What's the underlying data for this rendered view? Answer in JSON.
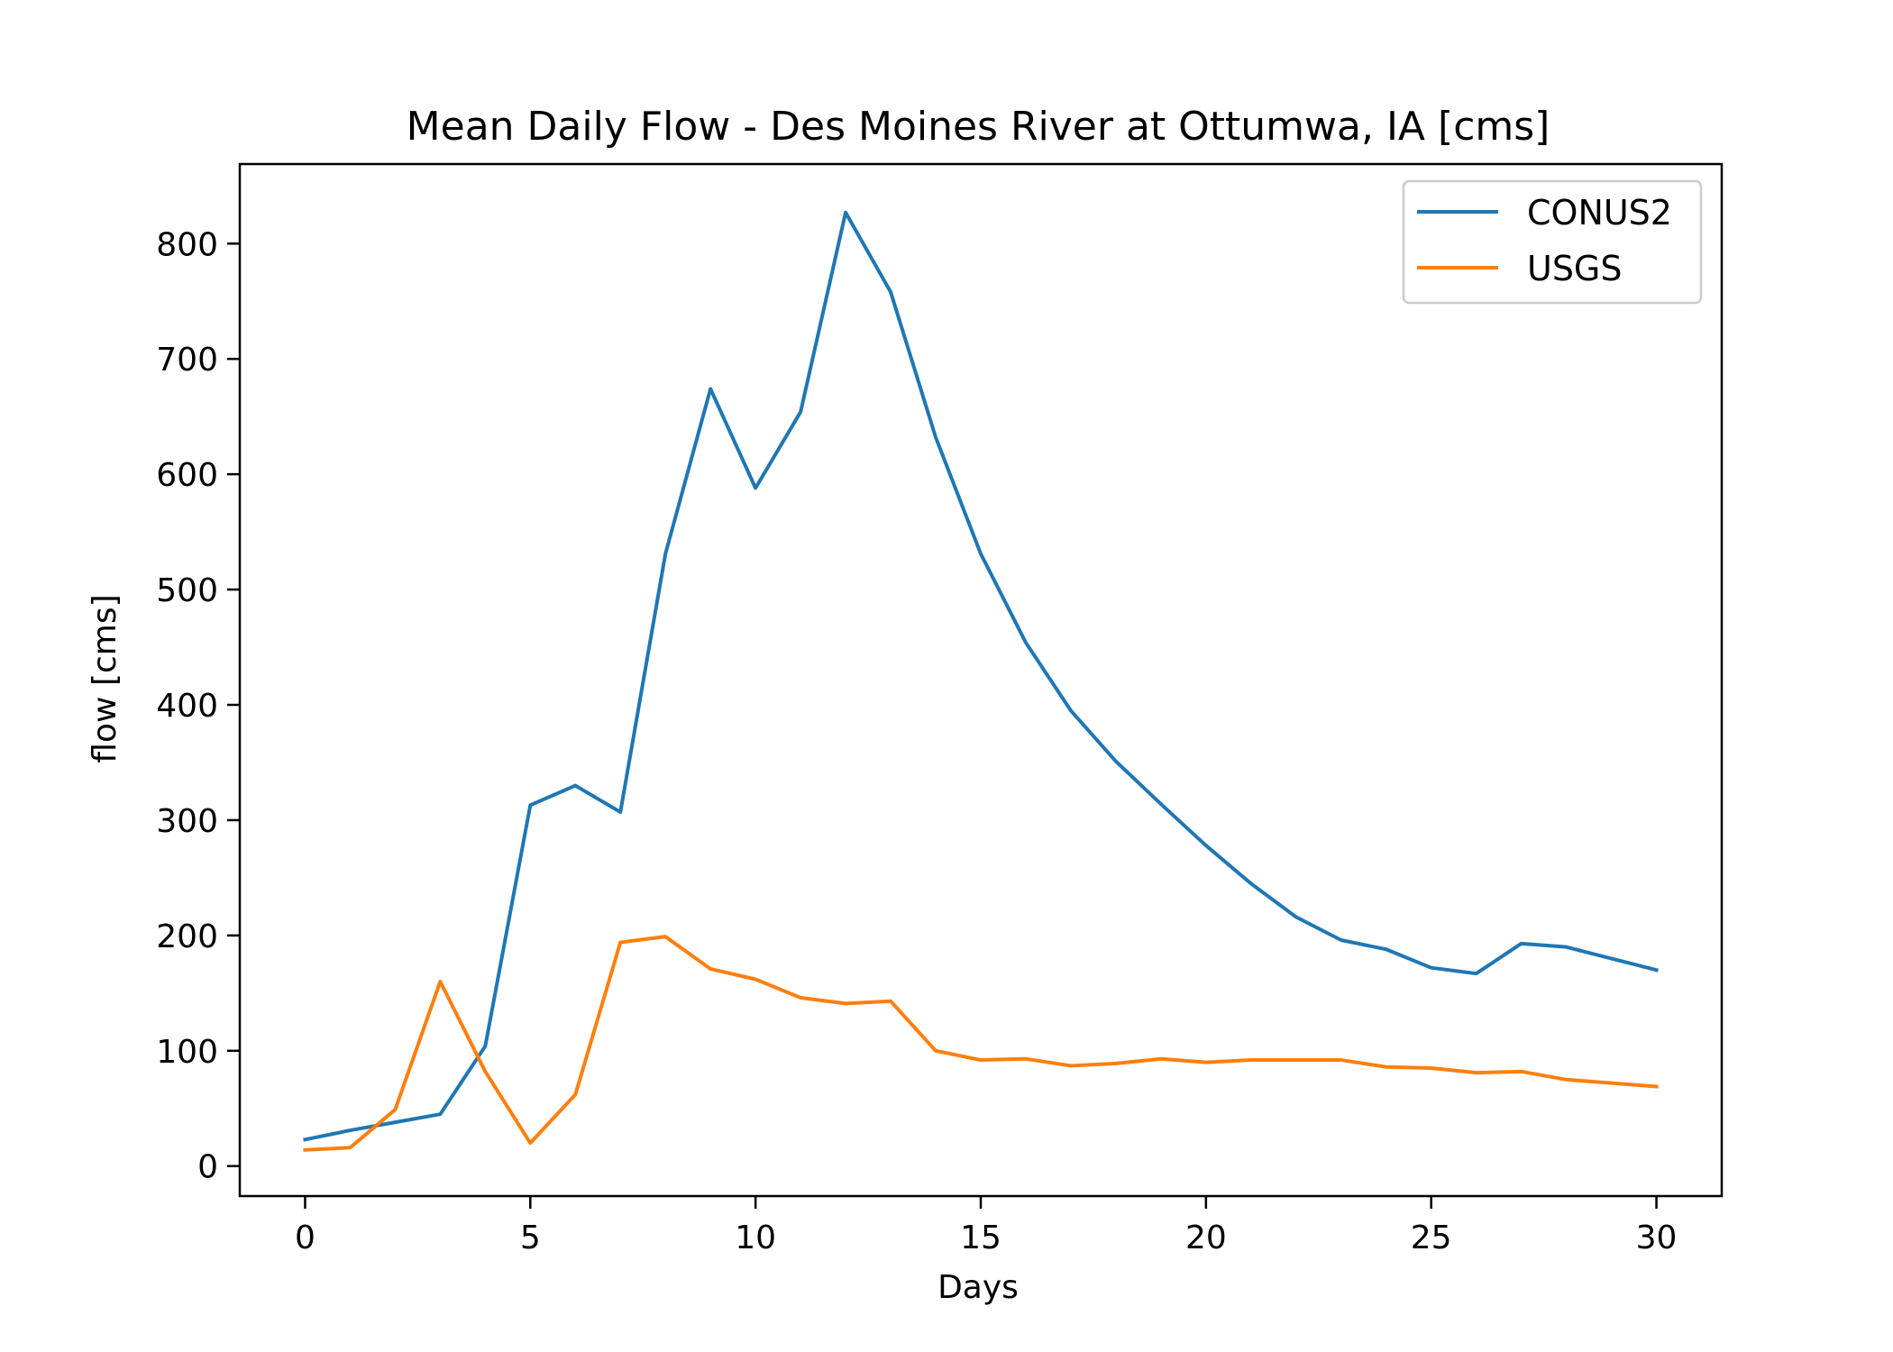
{
  "chart_data": {
    "type": "line",
    "title": "Mean Daily Flow - Des Moines River at Ottumwa, IA [cms]",
    "xlabel": "Days",
    "ylabel": "flow [cms]",
    "xlim": [
      -1.45,
      31.45
    ],
    "ylim": [
      -26,
      869
    ],
    "xticks": [
      0,
      5,
      10,
      15,
      20,
      25,
      30
    ],
    "yticks": [
      0,
      100,
      200,
      300,
      400,
      500,
      600,
      700,
      800
    ],
    "grid": false,
    "legend_position": "top-right",
    "x": [
      0,
      1,
      2,
      3,
      4,
      5,
      6,
      7,
      8,
      9,
      10,
      11,
      12,
      13,
      14,
      15,
      16,
      17,
      18,
      19,
      20,
      21,
      22,
      23,
      24,
      25,
      26,
      27,
      28,
      29,
      30
    ],
    "series": [
      {
        "name": "CONUS2",
        "color": "#1f77b4",
        "values": [
          23,
          31,
          38,
          45,
          104,
          313,
          330,
          307,
          531,
          674,
          588,
          654,
          827,
          758,
          632,
          531,
          454,
          395,
          351,
          314,
          278,
          245,
          216,
          196,
          188,
          172,
          167,
          193,
          190,
          180,
          170
        ]
      },
      {
        "name": "USGS",
        "color": "#ff7f0e",
        "values": [
          14,
          16,
          49,
          160,
          82,
          20,
          62,
          194,
          199,
          171,
          162,
          146,
          141,
          143,
          100,
          92,
          93,
          87,
          89,
          93,
          90,
          92,
          92,
          92,
          86,
          85,
          81,
          82,
          75,
          72,
          69
        ]
      }
    ]
  }
}
